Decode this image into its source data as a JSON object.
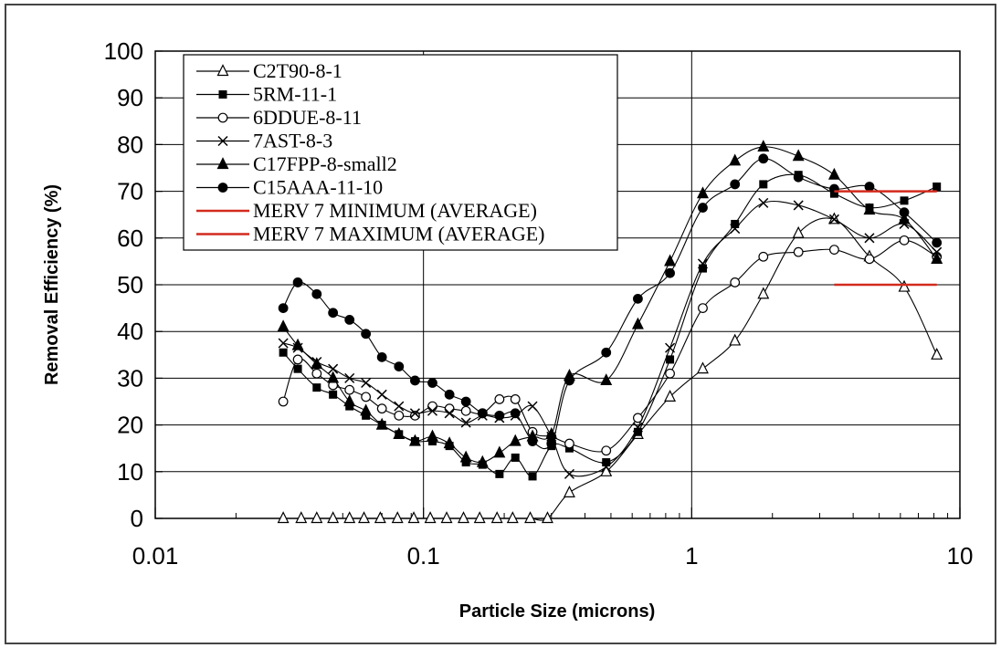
{
  "chart_data": {
    "type": "line",
    "title": "",
    "xlabel": "Particle Size (microns)",
    "ylabel": "Removal Efficiency (%)",
    "x_scale": "log",
    "xlim": [
      0.01,
      10
    ],
    "ylim": [
      0,
      100
    ],
    "x_ticks": [
      "0.01",
      "0.1",
      "1",
      "10"
    ],
    "y_ticks": [
      "0",
      "10",
      "20",
      "30",
      "40",
      "50",
      "60",
      "70",
      "80",
      "90",
      "100"
    ],
    "grid": true,
    "legend_position": "top-left",
    "series": [
      {
        "name": "C2T90-8-1",
        "marker": "triangle-open",
        "color": "#000000",
        "points": [
          [
            0.03,
            0
          ],
          [
            0.035,
            0
          ],
          [
            0.04,
            0
          ],
          [
            0.046,
            0
          ],
          [
            0.053,
            0
          ],
          [
            0.06,
            0
          ],
          [
            0.069,
            0
          ],
          [
            0.08,
            0
          ],
          [
            0.092,
            0
          ],
          [
            0.106,
            0
          ],
          [
            0.122,
            0
          ],
          [
            0.141,
            0
          ],
          [
            0.162,
            0
          ],
          [
            0.188,
            0
          ],
          [
            0.215,
            0
          ],
          [
            0.25,
            0
          ],
          [
            0.29,
            0
          ],
          [
            0.35,
            5.5
          ],
          [
            0.48,
            10
          ],
          [
            0.63,
            18
          ],
          [
            0.83,
            26
          ],
          [
            1.1,
            32
          ],
          [
            1.45,
            38
          ],
          [
            1.85,
            48
          ],
          [
            2.5,
            61
          ],
          [
            3.4,
            64
          ],
          [
            4.6,
            56
          ],
          [
            6.2,
            49.5
          ],
          [
            8.2,
            35
          ]
        ]
      },
      {
        "name": "5RM-11-1",
        "marker": "square-filled",
        "color": "#000000",
        "points": [
          [
            0.03,
            35.5
          ],
          [
            0.034,
            32
          ],
          [
            0.04,
            28
          ],
          [
            0.046,
            26.5
          ],
          [
            0.053,
            24
          ],
          [
            0.061,
            22
          ],
          [
            0.07,
            20
          ],
          [
            0.081,
            18
          ],
          [
            0.093,
            16.5
          ],
          [
            0.108,
            16.5
          ],
          [
            0.125,
            15.5
          ],
          [
            0.144,
            12
          ],
          [
            0.166,
            11.5
          ],
          [
            0.192,
            9.5
          ],
          [
            0.22,
            13
          ],
          [
            0.255,
            9
          ],
          [
            0.3,
            15.5
          ],
          [
            0.35,
            15
          ],
          [
            0.48,
            12
          ],
          [
            0.63,
            18.5
          ],
          [
            0.83,
            34
          ],
          [
            1.1,
            53.5
          ],
          [
            1.45,
            63
          ],
          [
            1.85,
            71.5
          ],
          [
            2.5,
            73.5
          ],
          [
            3.4,
            69.5
          ],
          [
            4.6,
            66.5
          ],
          [
            6.2,
            68
          ],
          [
            8.2,
            71
          ]
        ]
      },
      {
        "name": "6DDUE-8-11",
        "marker": "circle-open",
        "color": "#000000",
        "points": [
          [
            0.03,
            25
          ],
          [
            0.034,
            34
          ],
          [
            0.04,
            31
          ],
          [
            0.046,
            28.5
          ],
          [
            0.053,
            27.5
          ],
          [
            0.061,
            26
          ],
          [
            0.07,
            23.5
          ],
          [
            0.081,
            22
          ],
          [
            0.093,
            22
          ],
          [
            0.108,
            24
          ],
          [
            0.125,
            23.5
          ],
          [
            0.144,
            23
          ],
          [
            0.166,
            22.5
          ],
          [
            0.192,
            25.5
          ],
          [
            0.22,
            25.5
          ],
          [
            0.255,
            18.5
          ],
          [
            0.3,
            17.5
          ],
          [
            0.35,
            16
          ],
          [
            0.48,
            14.5
          ],
          [
            0.63,
            21.5
          ],
          [
            0.83,
            31
          ],
          [
            1.1,
            45
          ],
          [
            1.45,
            50.5
          ],
          [
            1.85,
            56
          ],
          [
            2.5,
            57
          ],
          [
            3.4,
            57.5
          ],
          [
            4.6,
            55.5
          ],
          [
            6.2,
            59.5
          ],
          [
            8.2,
            56
          ]
        ]
      },
      {
        "name": "7AST-8-3",
        "marker": "cross",
        "color": "#000000",
        "points": [
          [
            0.03,
            37.5
          ],
          [
            0.034,
            36.5
          ],
          [
            0.04,
            33.5
          ],
          [
            0.046,
            32
          ],
          [
            0.053,
            30
          ],
          [
            0.061,
            29
          ],
          [
            0.07,
            26.5
          ],
          [
            0.081,
            24
          ],
          [
            0.093,
            22.5
          ],
          [
            0.108,
            23
          ],
          [
            0.125,
            22.5
          ],
          [
            0.144,
            20.5
          ],
          [
            0.166,
            22
          ],
          [
            0.192,
            21.5
          ],
          [
            0.22,
            22
          ],
          [
            0.255,
            24
          ],
          [
            0.3,
            17.5
          ],
          [
            0.35,
            9.5
          ],
          [
            0.48,
            11
          ],
          [
            0.63,
            19.5
          ],
          [
            0.83,
            36.5
          ],
          [
            1.1,
            54.5
          ],
          [
            1.45,
            62
          ],
          [
            1.85,
            67.5
          ],
          [
            2.5,
            67
          ],
          [
            3.4,
            64
          ],
          [
            4.6,
            60
          ],
          [
            6.2,
            63
          ],
          [
            8.2,
            57
          ]
        ]
      },
      {
        "name": "C17FPP-8-small2",
        "marker": "triangle-filled",
        "color": "#000000",
        "points": [
          [
            0.03,
            41
          ],
          [
            0.034,
            37
          ],
          [
            0.04,
            33
          ],
          [
            0.046,
            30
          ],
          [
            0.053,
            25
          ],
          [
            0.061,
            23
          ],
          [
            0.07,
            20
          ],
          [
            0.081,
            18
          ],
          [
            0.093,
            16.5
          ],
          [
            0.108,
            17.5
          ],
          [
            0.125,
            16
          ],
          [
            0.144,
            13
          ],
          [
            0.166,
            12
          ],
          [
            0.192,
            14
          ],
          [
            0.22,
            16.5
          ],
          [
            0.255,
            17.5
          ],
          [
            0.3,
            18
          ],
          [
            0.35,
            30.5
          ],
          [
            0.48,
            29.5
          ],
          [
            0.63,
            41.5
          ],
          [
            0.83,
            55
          ],
          [
            1.1,
            69.5
          ],
          [
            1.45,
            76.5
          ],
          [
            1.85,
            79.5
          ],
          [
            2.5,
            77.5
          ],
          [
            3.4,
            73.5
          ],
          [
            4.6,
            66
          ],
          [
            6.2,
            64
          ],
          [
            8.2,
            55.5
          ]
        ]
      },
      {
        "name": "C15AAA-11-10",
        "marker": "circle-filled",
        "color": "#000000",
        "points": [
          [
            0.03,
            45
          ],
          [
            0.034,
            50.5
          ],
          [
            0.04,
            48
          ],
          [
            0.046,
            44
          ],
          [
            0.053,
            42.5
          ],
          [
            0.061,
            39.5
          ],
          [
            0.07,
            34.5
          ],
          [
            0.081,
            32.5
          ],
          [
            0.093,
            29.5
          ],
          [
            0.108,
            29
          ],
          [
            0.125,
            26.5
          ],
          [
            0.144,
            25
          ],
          [
            0.166,
            22.5
          ],
          [
            0.192,
            22
          ],
          [
            0.22,
            22.5
          ],
          [
            0.255,
            16.5
          ],
          [
            0.3,
            16
          ],
          [
            0.35,
            29.5
          ],
          [
            0.48,
            35.5
          ],
          [
            0.63,
            47
          ],
          [
            0.83,
            52.5
          ],
          [
            1.1,
            66.5
          ],
          [
            1.45,
            71.5
          ],
          [
            1.85,
            77
          ],
          [
            2.5,
            73
          ],
          [
            3.4,
            70.5
          ],
          [
            4.6,
            71
          ],
          [
            6.2,
            65.5
          ],
          [
            8.2,
            59
          ]
        ]
      },
      {
        "name": "MERV 7 MINIMUM (AVERAGE)",
        "marker": "none",
        "color": "#d42a1e",
        "points": [
          [
            3.4,
            50
          ],
          [
            8.2,
            50
          ]
        ]
      },
      {
        "name": "MERV 7 MAXIMUM (AVERAGE)",
        "marker": "none",
        "color": "#d42a1e",
        "points": [
          [
            3.4,
            70
          ],
          [
            8.2,
            70
          ]
        ]
      }
    ]
  }
}
